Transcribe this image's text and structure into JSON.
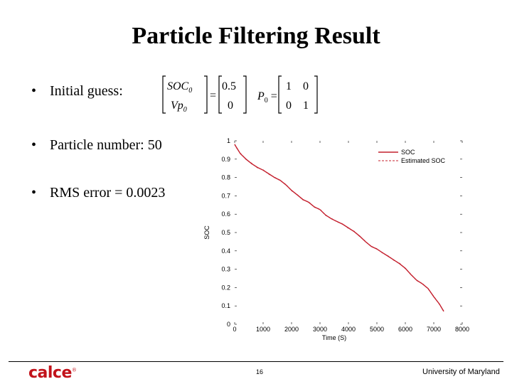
{
  "slide": {
    "title": "Particle Filtering Result",
    "bullets": [
      {
        "text": "Initial guess:"
      },
      {
        "text": "Particle number: 50"
      },
      {
        "text": "RMS error = 0.0023"
      }
    ]
  },
  "equation": {
    "lhs": [
      "SOC",
      "Vp"
    ],
    "lhs_sub": "0",
    "rhs": [
      "0.5",
      "0"
    ],
    "cov_symbol": "P",
    "cov_sub": "0",
    "cov_matrix": [
      [
        "1",
        "0"
      ],
      [
        "0",
        "1"
      ]
    ]
  },
  "footer": {
    "logo": "calce",
    "page_number": "16",
    "institution": "University of Maryland"
  },
  "colors": {
    "soc": "#c4202e",
    "estimated_soc": "#c4202e",
    "logo": "#c2121a"
  },
  "chart_data": {
    "type": "line",
    "xlabel": "Time (S)",
    "ylabel": "SOC",
    "xlim": [
      0,
      8000
    ],
    "ylim": [
      0,
      1
    ],
    "xticks": [
      "0",
      "1000",
      "2000",
      "3000",
      "4000",
      "5000",
      "6000",
      "7000",
      "8000"
    ],
    "yticks": [
      "0",
      "0.1",
      "0.2",
      "0.3",
      "0.4",
      "0.5",
      "0.6",
      "0.7",
      "0.8",
      "0.9",
      "1"
    ],
    "legend_position": "top-right",
    "series": [
      {
        "name": "SOC",
        "x": [
          0,
          100,
          200,
          400,
          600,
          800,
          1000,
          1200,
          1400,
          1600,
          1800,
          2000,
          2200,
          2400,
          2600,
          2800,
          3000,
          3200,
          3400,
          3600,
          3800,
          4000,
          4200,
          4400,
          4600,
          4800,
          5000,
          5200,
          5400,
          5600,
          5800,
          6000,
          6200,
          6400,
          6600,
          6800,
          7000,
          7200,
          7350
        ],
        "y": [
          0.98,
          0.955,
          0.93,
          0.9,
          0.875,
          0.855,
          0.84,
          0.82,
          0.8,
          0.785,
          0.76,
          0.73,
          0.705,
          0.68,
          0.665,
          0.64,
          0.625,
          0.595,
          0.575,
          0.56,
          0.545,
          0.525,
          0.505,
          0.48,
          0.45,
          0.425,
          0.41,
          0.39,
          0.37,
          0.35,
          0.33,
          0.305,
          0.27,
          0.24,
          0.22,
          0.195,
          0.15,
          0.11,
          0.07
        ]
      },
      {
        "name": "Estimated SOC",
        "x": [
          0,
          100,
          200,
          400,
          600,
          800,
          1000,
          1200,
          1400,
          1600,
          1800,
          2000,
          2200,
          2400,
          2600,
          2800,
          3000,
          3200,
          3400,
          3600,
          3800,
          4000,
          4200,
          4400,
          4600,
          4800,
          5000,
          5200,
          5400,
          5600,
          5800,
          6000,
          6200,
          6400,
          6600,
          6800,
          7000,
          7200,
          7350
        ],
        "y": [
          0.982,
          0.952,
          0.932,
          0.898,
          0.877,
          0.853,
          0.842,
          0.818,
          0.802,
          0.783,
          0.762,
          0.728,
          0.707,
          0.678,
          0.667,
          0.638,
          0.627,
          0.593,
          0.577,
          0.558,
          0.547,
          0.523,
          0.507,
          0.478,
          0.452,
          0.423,
          0.412,
          0.388,
          0.372,
          0.348,
          0.332,
          0.303,
          0.272,
          0.238,
          0.222,
          0.193,
          0.152,
          0.108,
          0.072
        ]
      }
    ]
  }
}
